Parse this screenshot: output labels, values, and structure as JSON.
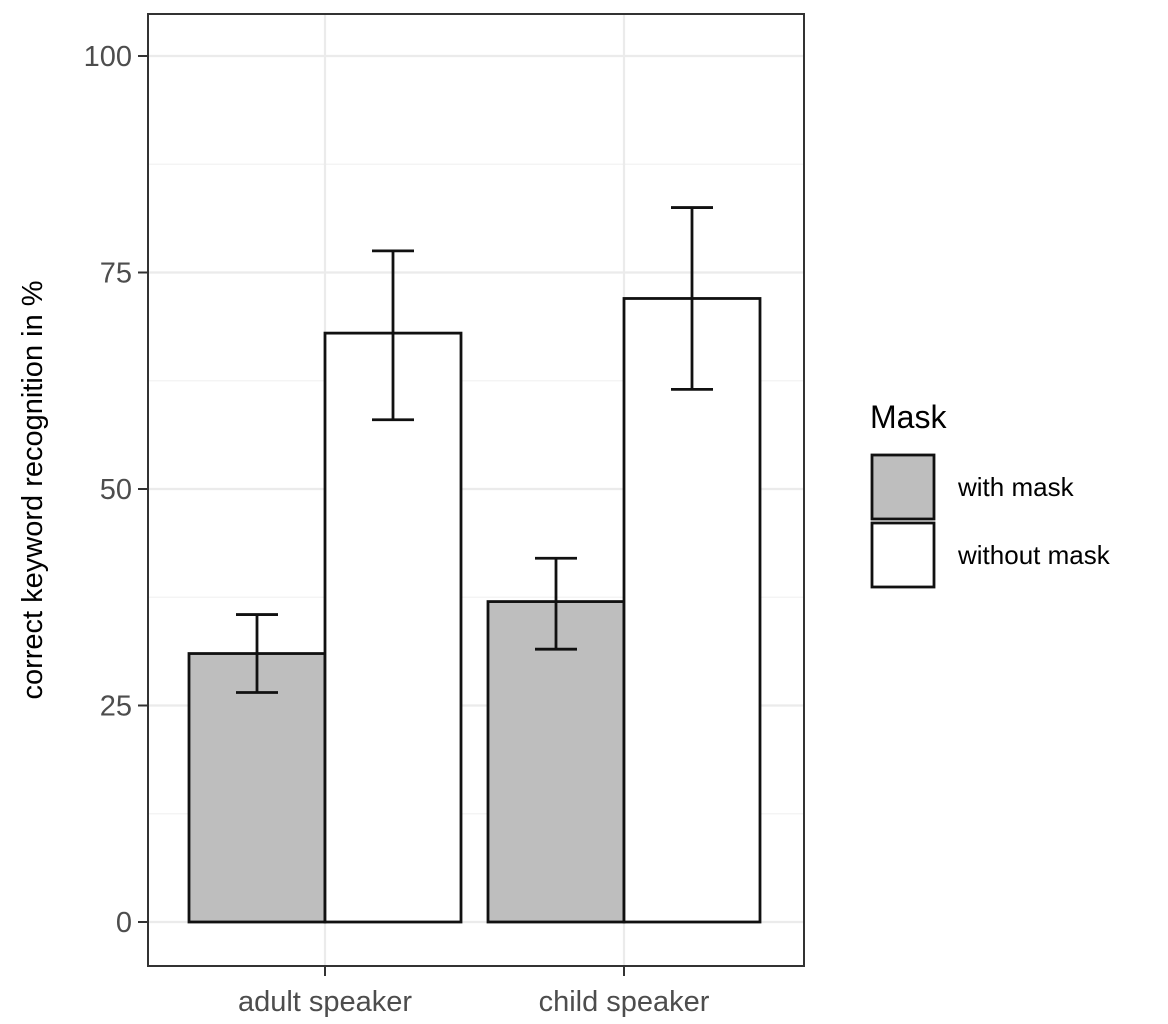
{
  "chart_data": {
    "type": "bar",
    "title": "",
    "xlabel": "",
    "ylabel": "correct keyword recognition in %",
    "ylim": [
      -5,
      105
    ],
    "yticks": [
      0,
      25,
      50,
      75,
      100
    ],
    "y_tick_labels": [
      "0",
      "25",
      "50",
      "75",
      "100"
    ],
    "categories": [
      "adult speaker",
      "child speaker"
    ],
    "series": [
      {
        "name": "with mask",
        "color": "#bebebe",
        "values": [
          31,
          37
        ],
        "error_low": [
          26.5,
          31.5
        ],
        "error_high": [
          35.5,
          42
        ]
      },
      {
        "name": "without mask",
        "color": "#ffffff",
        "values": [
          68,
          72
        ],
        "error_low": [
          58,
          61.5
        ],
        "error_high": [
          77.5,
          82.5
        ]
      }
    ],
    "grid": true,
    "legend": {
      "title": "Mask",
      "position": "right"
    }
  }
}
